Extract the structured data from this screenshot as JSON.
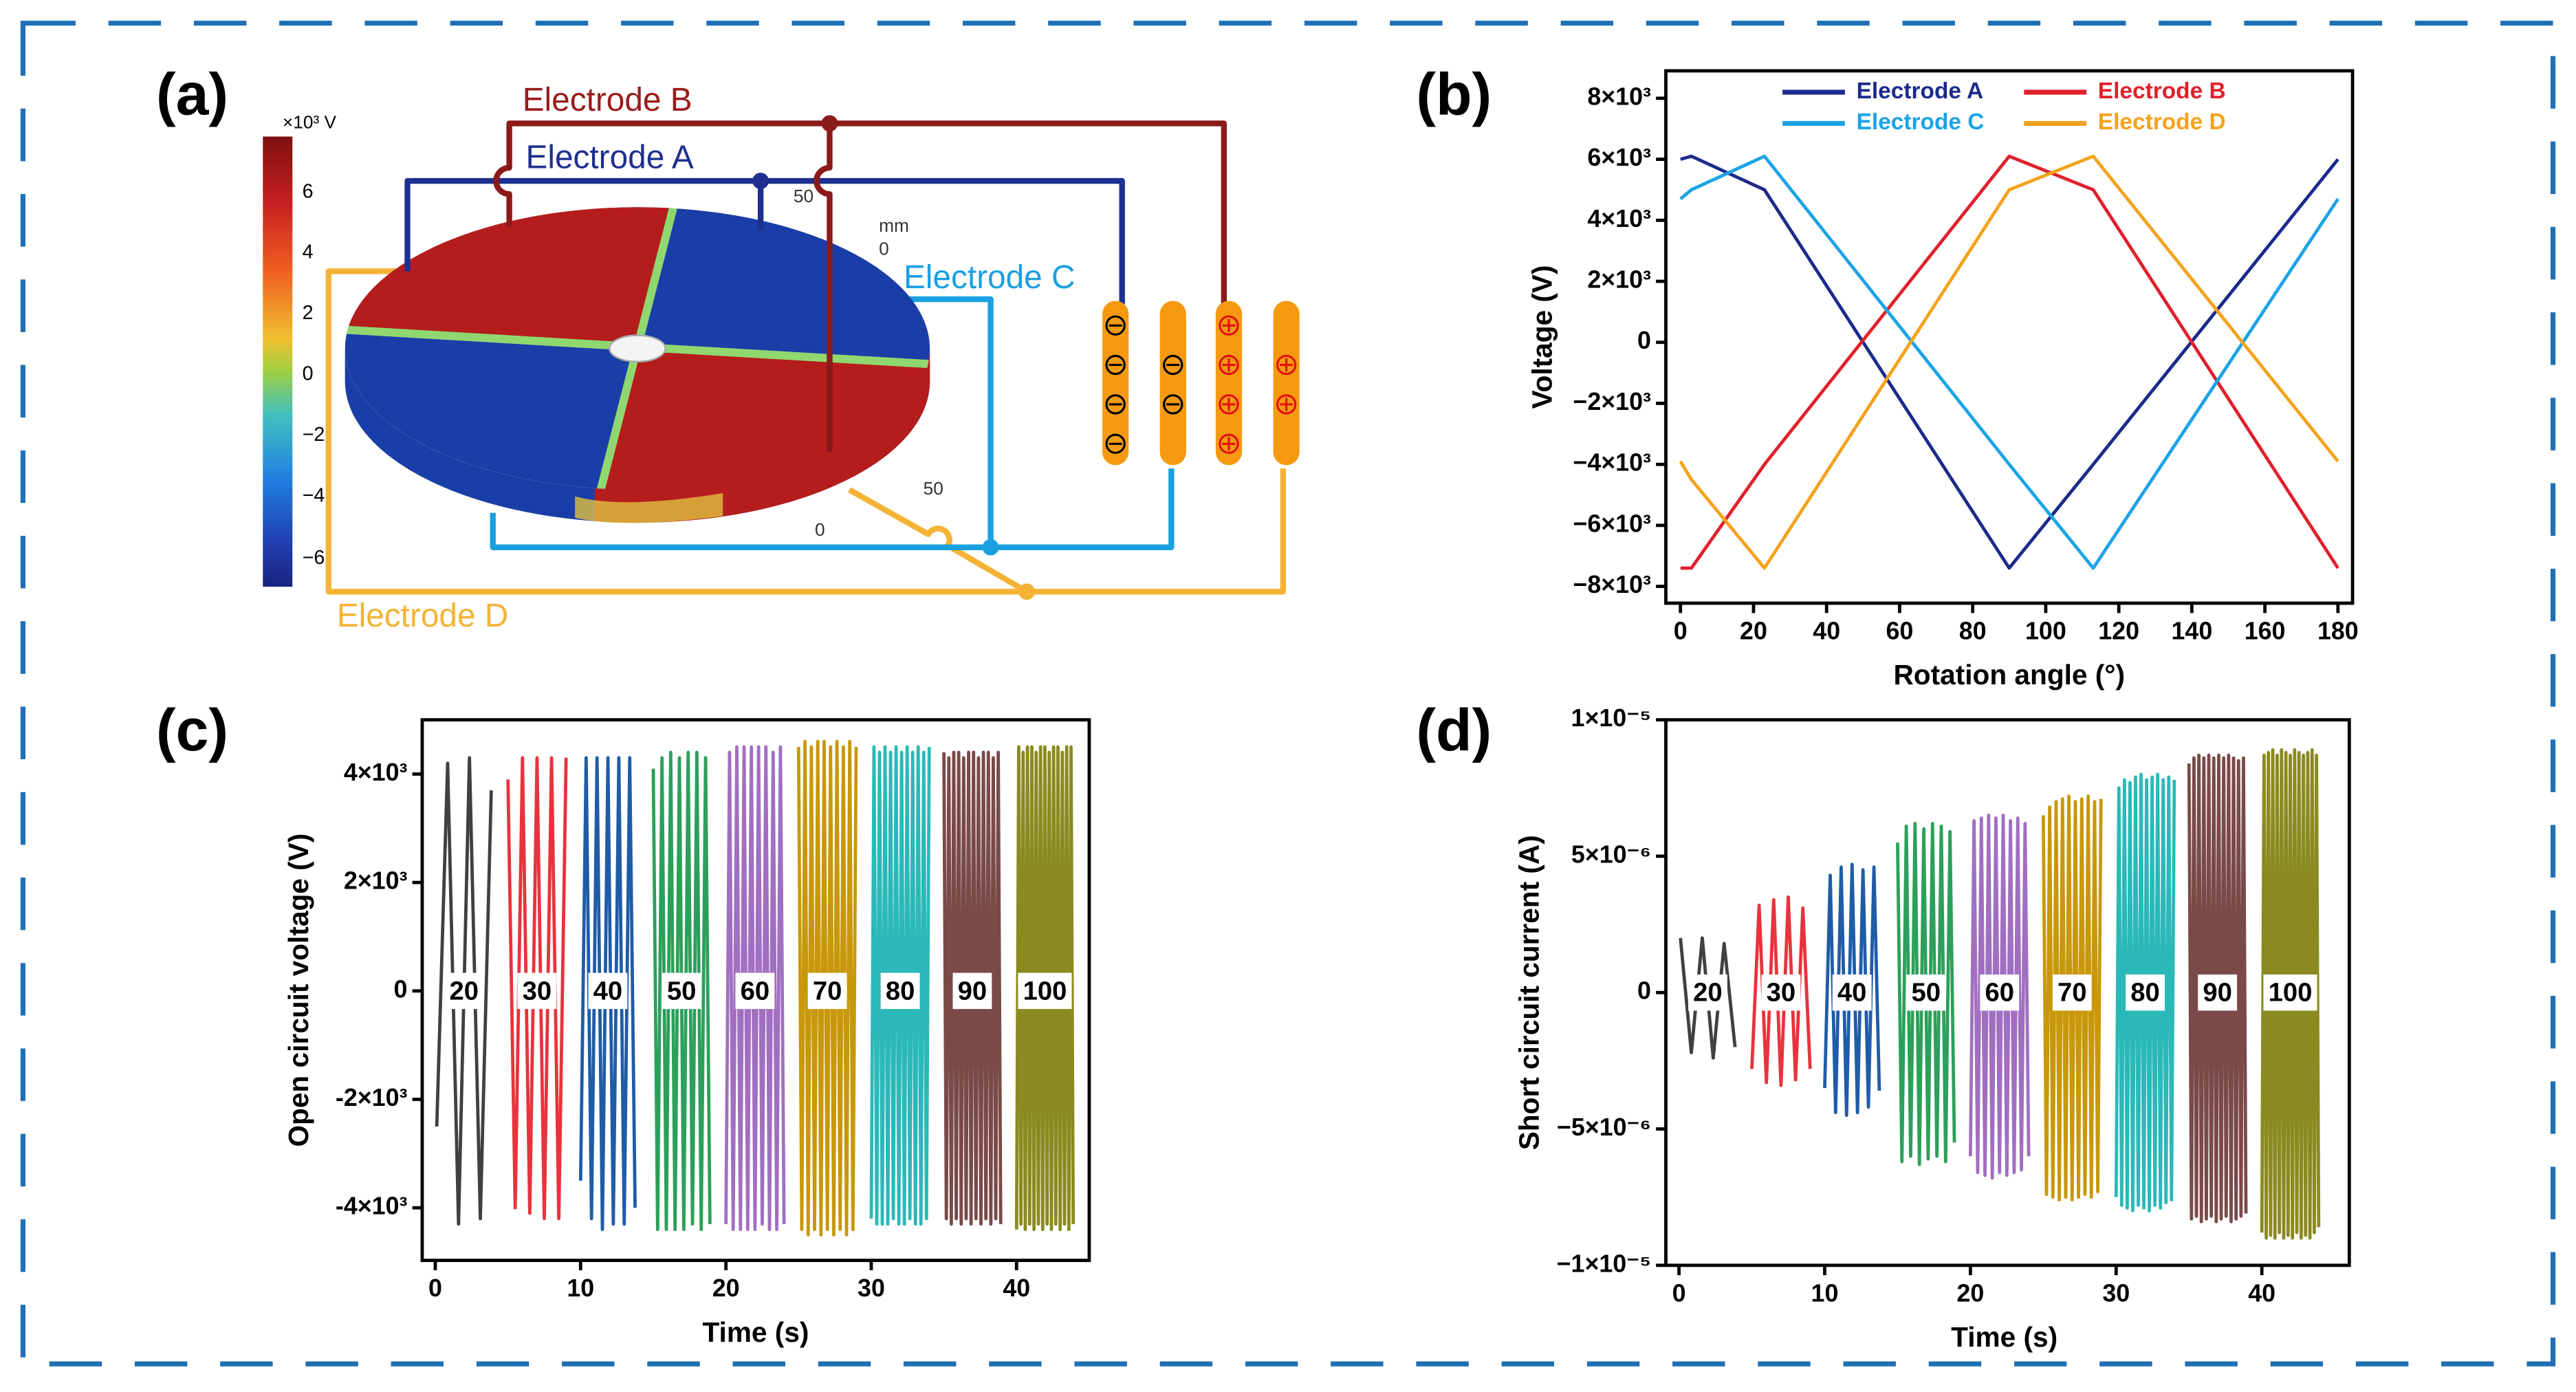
{
  "panel_a": {
    "label": "(a)",
    "colorbar_unit": "×10³ V",
    "colorbar_ticks": [
      "6",
      "4",
      "2",
      "0",
      "−2",
      "−4",
      "−6"
    ],
    "electrodes": [
      "Electrode A",
      "Electrode B",
      "Electrode C",
      "Electrode D"
    ],
    "axis_labels": [
      "mm",
      "50",
      "0",
      "50",
      "0"
    ]
  },
  "chart_data": [
    {
      "type": "line",
      "panel_label": "(b)",
      "x_label": "Rotation angle (°)",
      "y_label": "Voltage (V)",
      "legend": "top",
      "x": [
        0,
        3,
        23,
        90,
        113,
        180
      ],
      "series": [
        {
          "name": "Electrode A",
          "color": "#1b2a8a",
          "values": [
            6000,
            6100,
            5000,
            -7400,
            -4000,
            6000
          ]
        },
        {
          "name": "Electrode B",
          "color": "#e0202c",
          "values": [
            -7400,
            -7400,
            -4000,
            6100,
            5000,
            -7400
          ]
        },
        {
          "name": "Electrode C",
          "color": "#1aa3e8",
          "values": [
            4700,
            5000,
            6100,
            -4000,
            -7400,
            4700
          ]
        },
        {
          "name": "Electrode D",
          "color": "#f5a21b",
          "values": [
            -3900,
            -4500,
            -7400,
            5000,
            6100,
            -3900
          ]
        }
      ],
      "xlim": [
        -4,
        184
      ],
      "xticks": [
        0,
        20,
        40,
        60,
        80,
        100,
        120,
        140,
        160,
        180
      ],
      "ylim": [
        -8550,
        8900
      ],
      "yticks": [
        {
          "value": 8000,
          "label": "8×10³"
        },
        {
          "value": 6000,
          "label": "6×10³"
        },
        {
          "value": 4000,
          "label": "4×10³"
        },
        {
          "value": 2000,
          "label": "2×10³"
        },
        0,
        {
          "value": -2000,
          "label": "−2×10³"
        },
        {
          "value": -4000,
          "label": "−4×10³"
        },
        {
          "value": -6000,
          "label": "−6×10³"
        },
        {
          "value": -8000,
          "label": "−8×10³"
        }
      ]
    },
    {
      "type": "line",
      "panel_label": "(c)",
      "x_label": "Time (s)",
      "y_label": "Open circuit voltage (V)",
      "legend": "inline",
      "series": [
        {
          "name": "20",
          "color": "#404040",
          "x": [
            0.1,
            0.85,
            1.6,
            2.35,
            3.1,
            3.85
          ],
          "values": [
            -2500,
            4200,
            -4300,
            4300,
            -4200,
            3700
          ]
        },
        {
          "name": "30",
          "color": "#e8333c",
          "x": [
            5,
            5.5,
            6,
            6.5,
            7,
            7.5,
            8,
            8.5,
            9
          ],
          "values": [
            3900,
            -4000,
            4300,
            -4100,
            4300,
            -4200,
            4300,
            -4200,
            4300
          ]
        },
        {
          "name": "40",
          "color": "#1f5ca8",
          "x": [
            10,
            10.38,
            10.75,
            11.13,
            11.5,
            11.88,
            12.25,
            12.63,
            13,
            13.38,
            13.75
          ],
          "values": [
            -3500,
            4300,
            -4200,
            4300,
            -4400,
            4300,
            -4300,
            4300,
            -4300,
            4300,
            -4000
          ]
        },
        {
          "name": "50",
          "color": "#2ca05a",
          "x": [
            15,
            15.3,
            15.6,
            15.9,
            16.2,
            16.5,
            16.8,
            17.1,
            17.4,
            17.7,
            18,
            18.3,
            18.6,
            18.9
          ],
          "values": [
            4100,
            -4400,
            4300,
            -4400,
            4400,
            -4400,
            4300,
            -4400,
            4400,
            -4300,
            4400,
            -4400,
            4300,
            -4300
          ]
        },
        {
          "name": "60",
          "color": "#a16fc1",
          "x": [
            20,
            20.25,
            20.5,
            20.75,
            21,
            21.25,
            21.5,
            21.75,
            22,
            22.25,
            22.5,
            22.75,
            23,
            23.25,
            23.5,
            23.75,
            24
          ],
          "values": [
            -4300,
            4400,
            -4400,
            4500,
            -4400,
            4500,
            -4400,
            4500,
            -4400,
            4500,
            -4300,
            4500,
            -4400,
            4400,
            -4400,
            4500,
            -4300
          ]
        },
        {
          "name": "70",
          "color": "#c8980a",
          "x": [
            25,
            25.22,
            25.44,
            25.66,
            25.88,
            26.1,
            26.32,
            26.54,
            26.76,
            26.98,
            27.2,
            27.42,
            27.64,
            27.86,
            28.08,
            28.3,
            28.52,
            28.74,
            28.96
          ],
          "values": [
            4500,
            -4400,
            4600,
            -4500,
            4500,
            -4400,
            4600,
            -4500,
            4600,
            -4400,
            4500,
            -4500,
            4600,
            -4400,
            4500,
            -4500,
            4600,
            -4400,
            4500
          ]
        },
        {
          "name": "80",
          "color": "#2bb8b8",
          "x": [
            30,
            30.19,
            30.38,
            30.57,
            30.76,
            30.95,
            31.14,
            31.33,
            31.52,
            31.71,
            31.9,
            32.09,
            32.28,
            32.47,
            32.66,
            32.85,
            33.04,
            33.23,
            33.42,
            33.61,
            33.8,
            33.99
          ],
          "values": [
            -4200,
            4500,
            -4300,
            4400,
            -4300,
            4500,
            -4300,
            4400,
            -4200,
            4500,
            -4300,
            4400,
            -4300,
            4500,
            -4200,
            4400,
            -4300,
            4500,
            -4300,
            4400,
            -4200,
            4500
          ]
        },
        {
          "name": "90",
          "color": "#7a4a48",
          "x": [
            35,
            35.17,
            35.34,
            35.51,
            35.68,
            35.85,
            36.02,
            36.19,
            36.36,
            36.53,
            36.7,
            36.87,
            37.04,
            37.21,
            37.38,
            37.55,
            37.72,
            37.89,
            38.06,
            38.23,
            38.4,
            38.57,
            38.74,
            38.91
          ],
          "values": [
            4400,
            -4200,
            4300,
            -4300,
            4400,
            -4200,
            4400,
            -4300,
            4300,
            -4200,
            4400,
            -4300,
            4400,
            -4200,
            4300,
            -4300,
            4400,
            -4200,
            4400,
            -4300,
            4300,
            -4200,
            4400,
            -4300
          ]
        },
        {
          "name": "100",
          "color": "#8a8a20",
          "x": [
            40,
            40.15,
            40.3,
            40.45,
            40.6,
            40.75,
            40.9,
            41.05,
            41.2,
            41.35,
            41.5,
            41.65,
            41.8,
            41.95,
            42.1,
            42.25,
            42.4,
            42.55,
            42.7,
            42.85,
            43,
            43.15,
            43.3,
            43.45,
            43.6,
            43.75,
            43.9
          ],
          "values": [
            -4400,
            4500,
            -4300,
            4400,
            -4400,
            4500,
            -4300,
            4500,
            -4400,
            4400,
            -4300,
            4500,
            -4400,
            4500,
            -4300,
            4400,
            -4400,
            4500,
            -4300,
            4500,
            -4400,
            4400,
            -4300,
            4500,
            -4400,
            4500,
            -4300
          ]
        }
      ],
      "xlim": [
        -0.9,
        45
      ],
      "xticks": [
        0,
        10,
        20,
        30,
        40
      ],
      "ylim": [
        -4970,
        5000
      ],
      "yticks": [
        {
          "value": 4000,
          "label": "4×10³"
        },
        {
          "value": 2000,
          "label": "2×10³"
        },
        0,
        {
          "value": -2000,
          "label": "-2×10³"
        },
        {
          "value": -4000,
          "label": "-4×10³"
        }
      ]
    },
    {
      "type": "line",
      "panel_label": "(d)",
      "x_label": "Time (s)",
      "y_label": "Short circuit current (A)",
      "legend": "inline",
      "series": [
        {
          "name": "20",
          "color": "#404040",
          "x": [
            0.1,
            0.85,
            1.6,
            2.35,
            3.1,
            3.85
          ],
          "values": [
            2e-06,
            -2.2e-06,
            2e-06,
            -2.4e-06,
            1.8e-06,
            -2e-06
          ]
        },
        {
          "name": "30",
          "color": "#e8333c",
          "x": [
            5,
            5.5,
            6,
            6.5,
            7,
            7.5,
            8,
            8.5,
            9
          ],
          "values": [
            -2.8e-06,
            3.2e-06,
            -3.3e-06,
            3.4e-06,
            -3.4e-06,
            3.5e-06,
            -3.2e-06,
            3.1e-06,
            -2.8e-06
          ]
        },
        {
          "name": "40",
          "color": "#1f5ca8",
          "x": [
            10,
            10.38,
            10.75,
            11.13,
            11.5,
            11.88,
            12.25,
            12.63,
            13,
            13.38,
            13.75
          ],
          "values": [
            -3.5e-06,
            4.3e-06,
            -4.4e-06,
            4.6e-06,
            -4.5e-06,
            4.7e-06,
            -4.4e-06,
            4.5e-06,
            -4.2e-06,
            4.6e-06,
            -3.6e-06
          ]
        },
        {
          "name": "50",
          "color": "#2ca05a",
          "x": [
            15,
            15.3,
            15.6,
            15.9,
            16.2,
            16.5,
            16.8,
            17.1,
            17.4,
            17.7,
            18,
            18.3,
            18.6,
            18.9
          ],
          "values": [
            5.5e-06,
            -6.2e-06,
            6.1e-06,
            -6e-06,
            6.2e-06,
            -6.3e-06,
            6e-06,
            -6.1e-06,
            6.2e-06,
            -6e-06,
            6.1e-06,
            -6.2e-06,
            5.9e-06,
            -5.5e-06
          ]
        },
        {
          "name": "60",
          "color": "#a16fc1",
          "x": [
            20,
            20.25,
            20.5,
            20.75,
            21,
            21.25,
            21.5,
            21.75,
            22,
            22.25,
            22.5,
            22.75,
            23,
            23.25,
            23.5,
            23.75,
            24
          ],
          "values": [
            -6e-06,
            6.3e-06,
            -6.6e-06,
            6.4e-06,
            -6.7e-06,
            6.5e-06,
            -6.8e-06,
            6.4e-06,
            -6.6e-06,
            6.5e-06,
            -6.7e-06,
            6.3e-06,
            -6.6e-06,
            6.4e-06,
            -6.5e-06,
            6.2e-06,
            -6e-06
          ]
        },
        {
          "name": "70",
          "color": "#c8980a",
          "x": [
            25,
            25.22,
            25.44,
            25.66,
            25.88,
            26.1,
            26.32,
            26.54,
            26.76,
            26.98,
            27.2,
            27.42,
            27.64,
            27.86,
            28.08,
            28.3,
            28.52,
            28.74,
            28.96
          ],
          "values": [
            6.5e-06,
            -7.4e-06,
            6.8e-06,
            -7.5e-06,
            7e-06,
            -7.6e-06,
            7.1e-06,
            -7.5e-06,
            7.2e-06,
            -7.6e-06,
            7e-06,
            -7.5e-06,
            7.1e-06,
            -7.4e-06,
            7.2e-06,
            -7.5e-06,
            7e-06,
            -7.3e-06,
            7.1e-06
          ]
        },
        {
          "name": "80",
          "color": "#2bb8b8",
          "x": [
            30,
            30.19,
            30.38,
            30.57,
            30.76,
            30.95,
            31.14,
            31.33,
            31.52,
            31.71,
            31.9,
            32.09,
            32.28,
            32.47,
            32.66,
            32.85,
            33.04,
            33.23,
            33.42,
            33.61,
            33.8,
            33.99
          ],
          "values": [
            -7.5e-06,
            7.5e-06,
            -7.8e-06,
            7.8e-06,
            -7.9e-06,
            7.7e-06,
            -8e-06,
            7.9e-06,
            -7.8e-06,
            8e-06,
            -7.9e-06,
            7.8e-06,
            -8e-06,
            7.9e-06,
            -7.8e-06,
            8e-06,
            -7.9e-06,
            7.8e-06,
            -7.7e-06,
            7.9e-06,
            -7.6e-06,
            7.8e-06
          ]
        },
        {
          "name": "90",
          "color": "#7a4a48",
          "x": [
            35,
            35.17,
            35.34,
            35.51,
            35.68,
            35.85,
            36.02,
            36.19,
            36.36,
            36.53,
            36.7,
            36.87,
            37.04,
            37.21,
            37.38,
            37.55,
            37.72,
            37.89,
            38.06,
            38.23,
            38.4,
            38.57,
            38.74,
            38.91
          ],
          "values": [
            8.4e-06,
            -8.3e-06,
            8.6e-06,
            -8.2e-06,
            8.7e-06,
            -8.4e-06,
            8.6e-06,
            -8.3e-06,
            8.7e-06,
            -8.2e-06,
            8.6e-06,
            -8.4e-06,
            8.7e-06,
            -8.3e-06,
            8.6e-06,
            -8.2e-06,
            8.7e-06,
            -8.4e-06,
            8.6e-06,
            -8.3e-06,
            8.5e-06,
            -8.2e-06,
            8.6e-06,
            -8.1e-06
          ]
        },
        {
          "name": "100",
          "color": "#8a8a20",
          "x": [
            40,
            40.15,
            40.3,
            40.45,
            40.6,
            40.75,
            40.9,
            41.05,
            41.2,
            41.35,
            41.5,
            41.65,
            41.8,
            41.95,
            42.1,
            42.25,
            42.4,
            42.55,
            42.7,
            42.85,
            43,
            43.15,
            43.3,
            43.45,
            43.6,
            43.75,
            43.9
          ],
          "values": [
            -8.8e-06,
            8.7e-06,
            -9e-06,
            8.8e-06,
            -8.9e-06,
            8.9e-06,
            -9e-06,
            8.7e-06,
            -8.8e-06,
            8.9e-06,
            -9e-06,
            8.8e-06,
            -8.9e-06,
            8.7e-06,
            -9e-06,
            8.9e-06,
            -8.8e-06,
            8.8e-06,
            -9e-06,
            8.7e-06,
            -8.9e-06,
            8.8e-06,
            -9e-06,
            8.9e-06,
            -8.8e-06,
            8.7e-06,
            -8.6e-06
          ]
        }
      ],
      "xlim": [
        -0.9,
        46
      ],
      "xticks": [
        0,
        10,
        20,
        30,
        40
      ],
      "ylim": [
        -1e-05,
        1e-05
      ],
      "yticks": [
        {
          "value": 1e-05,
          "label": "1×10⁻⁵"
        },
        {
          "value": 5e-06,
          "label": "5×10⁻⁶"
        },
        0,
        {
          "value": -5e-06,
          "label": "−5×10⁻⁶"
        },
        {
          "value": -1e-05,
          "label": "−1×10⁻⁵"
        }
      ]
    }
  ]
}
